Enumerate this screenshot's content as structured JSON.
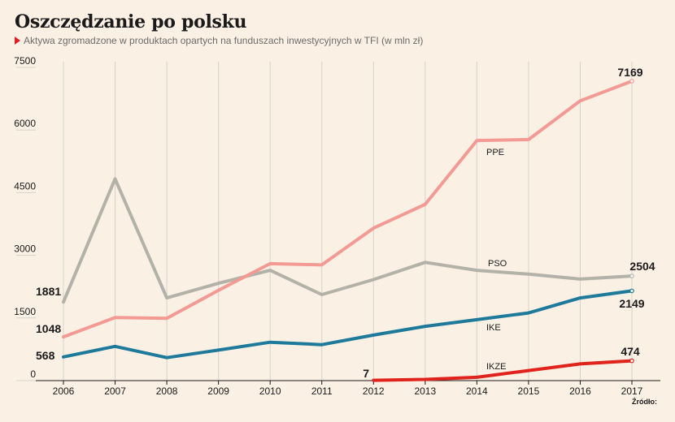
{
  "title": "Oszczędzanie po polsku",
  "subtitle": "Aktywa zgromadzone w produktach opartych na funduszach inwestycyjnych w TFI (w mln zł)",
  "source": "Źródło:",
  "chart_data": {
    "type": "line",
    "x": [
      "2006",
      "2007",
      "2008",
      "2009",
      "2010",
      "2011",
      "2012",
      "2013",
      "2014",
      "2015",
      "2016",
      "2017"
    ],
    "ylim": [
      0,
      7500
    ],
    "yticks": [
      0,
      1500,
      3000,
      4500,
      6000,
      7500
    ],
    "grid": "vertical",
    "series": [
      {
        "name": "PSO",
        "color": "#b3b2a9",
        "values": [
          1881,
          4830,
          1980,
          2330,
          2640,
          2060,
          2420,
          2830,
          2640,
          2550,
          2430,
          2504
        ],
        "start_label": "1881",
        "end_label": "2504"
      },
      {
        "name": "PPE",
        "color": "#f29a93",
        "values": [
          1048,
          1510,
          1490,
          2160,
          2800,
          2770,
          3650,
          4220,
          5750,
          5770,
          6700,
          7169
        ],
        "start_label": "1048",
        "end_label": "7169"
      },
      {
        "name": "IKE",
        "color": "#1e7a9a",
        "values": [
          568,
          820,
          550,
          730,
          920,
          860,
          1090,
          1300,
          1460,
          1620,
          1980,
          2149
        ],
        "start_label": "568",
        "end_label": "2149"
      },
      {
        "name": "IKZE",
        "color": "#e0231c",
        "values": [
          null,
          null,
          null,
          null,
          null,
          null,
          7,
          30,
          80,
          240,
          400,
          474
        ],
        "start_label": "7",
        "end_label": "474"
      }
    ]
  }
}
